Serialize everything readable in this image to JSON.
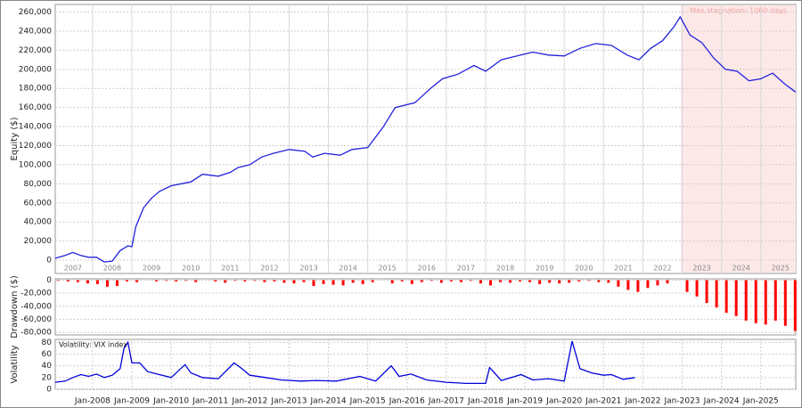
{
  "chart_data": [
    {
      "type": "line",
      "y_label": "Equity ($)",
      "annotation": "Max stagnation: 1060 days",
      "stagnation_span": [
        2022.97,
        2025.89
      ],
      "shade_color": "#fde8e8",
      "color": "#2222dd",
      "xlim": [
        2007.05,
        2025.89
      ],
      "ylim": [
        -14000,
        268000
      ],
      "xgrid": [
        2008,
        2009,
        2010,
        2011,
        2012,
        2013,
        2014,
        2015,
        2016,
        2017,
        2018,
        2019,
        2020,
        2021,
        2022,
        2023,
        2024,
        2025
      ],
      "xticks": [
        {
          "value": 2007.5,
          "label": "2007"
        },
        {
          "value": 2008.5,
          "label": "2008"
        },
        {
          "value": 2009.5,
          "label": "2009"
        },
        {
          "value": 2010.5,
          "label": "2010"
        },
        {
          "value": 2011.5,
          "label": "2011"
        },
        {
          "value": 2012.5,
          "label": "2012"
        },
        {
          "value": 2013.5,
          "label": "2013"
        },
        {
          "value": 2014.5,
          "label": "2014"
        },
        {
          "value": 2015.5,
          "label": "2015"
        },
        {
          "value": 2016.5,
          "label": "2016"
        },
        {
          "value": 2017.5,
          "label": "2017"
        },
        {
          "value": 2018.5,
          "label": "2018"
        },
        {
          "value": 2019.5,
          "label": "2019"
        },
        {
          "value": 2020.5,
          "label": "2020"
        },
        {
          "value": 2021.5,
          "label": "2021"
        },
        {
          "value": 2022.5,
          "label": "2022"
        },
        {
          "value": 2023.5,
          "label": "2023"
        },
        {
          "value": 2024.5,
          "label": "2024"
        },
        {
          "value": 2025.5,
          "label": "2025"
        }
      ],
      "yticks": [
        0,
        {
          "value": 20000,
          "label": "20,000"
        },
        {
          "value": 40000,
          "label": "40,000"
        },
        {
          "value": 60000,
          "label": "60,000"
        },
        {
          "value": 80000,
          "label": "80,000"
        },
        {
          "value": 100000,
          "label": "100,000"
        },
        {
          "value": 120000,
          "label": "120,000"
        },
        {
          "value": 140000,
          "label": "140,000"
        },
        {
          "value": 160000,
          "label": "160,000"
        },
        {
          "value": 180000,
          "label": "180,000"
        },
        {
          "value": 200000,
          "label": "200,000"
        },
        {
          "value": 220000,
          "label": "220,000"
        },
        {
          "value": 240000,
          "label": "240,000"
        },
        {
          "value": 260000,
          "label": "260,000"
        }
      ],
      "x": [
        2007.05,
        2007.3,
        2007.5,
        2007.7,
        2007.9,
        2008.1,
        2008.3,
        2008.5,
        2008.7,
        2008.9,
        2009.0,
        2009.1,
        2009.3,
        2009.5,
        2009.7,
        2010.0,
        2010.5,
        2010.8,
        2011.2,
        2011.5,
        2011.7,
        2012.0,
        2012.3,
        2012.6,
        2013.0,
        2013.4,
        2013.6,
        2013.9,
        2014.3,
        2014.6,
        2015.0,
        2015.4,
        2015.7,
        2016.2,
        2016.6,
        2016.9,
        2017.3,
        2017.7,
        2018.0,
        2018.4,
        2018.8,
        2019.2,
        2019.6,
        2020.0,
        2020.4,
        2020.8,
        2021.2,
        2021.6,
        2021.9,
        2022.2,
        2022.5,
        2022.8,
        2022.95,
        2023.2,
        2023.5,
        2023.8,
        2024.1,
        2024.4,
        2024.7,
        2025.0,
        2025.3,
        2025.6,
        2025.89
      ],
      "values": [
        2000,
        5000,
        8000,
        5000,
        3000,
        3000,
        -2000,
        -1000,
        10000,
        15000,
        14000,
        35000,
        55000,
        65000,
        72000,
        78000,
        82000,
        90000,
        88000,
        92000,
        97000,
        100000,
        108000,
        112000,
        116000,
        114000,
        108000,
        112000,
        110000,
        116000,
        118000,
        140000,
        160000,
        165000,
        180000,
        190000,
        195000,
        204000,
        198000,
        210000,
        214000,
        218000,
        215000,
        214000,
        222000,
        227000,
        225000,
        215000,
        210000,
        222000,
        230000,
        245000,
        255000,
        236000,
        228000,
        212000,
        200000,
        198000,
        188000,
        190000,
        196000,
        185000,
        176000
      ]
    },
    {
      "type": "bar",
      "y_label": "Drawdown ($)",
      "color": "#ff0000",
      "xlim": [
        2007.05,
        2025.89
      ],
      "ylim": [
        -84000,
        2000
      ],
      "yticks": [
        0,
        {
          "value": -20000,
          "label": "-20,000"
        },
        {
          "value": -40000,
          "label": "-40,000"
        },
        {
          "value": -60000,
          "label": "-60,000"
        },
        {
          "value": -80000,
          "label": "-80,000"
        }
      ],
      "x": [
        2007.125,
        2007.375,
        2007.625,
        2007.875,
        2008.125,
        2008.375,
        2008.625,
        2008.875,
        2009.125,
        2009.375,
        2009.625,
        2009.875,
        2010.125,
        2010.375,
        2010.625,
        2010.875,
        2011.125,
        2011.375,
        2011.625,
        2011.875,
        2012.125,
        2012.375,
        2012.625,
        2012.875,
        2013.125,
        2013.375,
        2013.625,
        2013.875,
        2014.125,
        2014.375,
        2014.625,
        2014.875,
        2015.125,
        2015.375,
        2015.625,
        2015.875,
        2016.125,
        2016.375,
        2016.625,
        2016.875,
        2017.125,
        2017.375,
        2017.625,
        2017.875,
        2018.125,
        2018.375,
        2018.625,
        2018.875,
        2019.125,
        2019.375,
        2019.625,
        2019.875,
        2020.125,
        2020.375,
        2020.625,
        2020.875,
        2021.125,
        2021.375,
        2021.625,
        2021.875,
        2022.125,
        2022.375,
        2022.625,
        2022.875,
        2023.125,
        2023.375,
        2023.625,
        2023.875,
        2024.125,
        2024.375,
        2024.625,
        2024.875,
        2025.125,
        2025.375,
        2025.625,
        2025.875
      ],
      "values": [
        -1000,
        -2000,
        -3000,
        -5000,
        -6000,
        -10000,
        -9000,
        -2000,
        -3000,
        0,
        -2000,
        -1000,
        -2000,
        -1000,
        -3000,
        0,
        -2000,
        -4000,
        -1000,
        -2000,
        -1000,
        -3000,
        -2000,
        -4000,
        -5000,
        -3000,
        -9000,
        -6000,
        -7000,
        -8000,
        -4000,
        -6000,
        -3000,
        0,
        -5000,
        -2000,
        -6000,
        -3000,
        -1000,
        -4000,
        -2000,
        -3000,
        -1000,
        -5000,
        -8000,
        -3000,
        -4000,
        -2000,
        -3000,
        -6000,
        -4000,
        -5000,
        -4000,
        -2000,
        -1000,
        -3000,
        -4000,
        -10000,
        -15000,
        -18000,
        -12000,
        -8000,
        -5000,
        0,
        -18000,
        -25000,
        -35000,
        -42000,
        -50000,
        -55000,
        -62000,
        -66000,
        -68000,
        -62000,
        -70000,
        -78000
      ]
    },
    {
      "type": "line",
      "y_label": "Volatility",
      "xlim": [
        2007.05,
        2025.89
      ],
      "ylim": [
        0,
        85
      ],
      "yticks": [
        0,
        20,
        40,
        60,
        80
      ],
      "xticks": [
        {
          "value": 2008,
          "label": "Jan-2008"
        },
        {
          "value": 2009,
          "label": "Jan-2009"
        },
        {
          "value": 2010,
          "label": "Jan-2010"
        },
        {
          "value": 2011,
          "label": "Jan-2011"
        },
        {
          "value": 2012,
          "label": "Jan-2012"
        },
        {
          "value": 2013,
          "label": "Jan-2013"
        },
        {
          "value": 2014,
          "label": "Jan-2014"
        },
        {
          "value": 2015,
          "label": "Jan-2015"
        },
        {
          "value": 2016,
          "label": "Jan-2016"
        },
        {
          "value": 2017,
          "label": "Jan-2017"
        },
        {
          "value": 2018,
          "label": "Jan-2018"
        },
        {
          "value": 2019,
          "label": "Jan-2019"
        },
        {
          "value": 2020,
          "label": "Jan-2020"
        },
        {
          "value": 2021,
          "label": "Jan-2021"
        },
        {
          "value": 2022,
          "label": "Jan-2022"
        },
        {
          "value": 2023,
          "label": "Jan-2023"
        },
        {
          "value": 2024,
          "label": "Jan-2024"
        },
        {
          "value": 2025,
          "label": "Jan-2025"
        }
      ],
      "series": [
        {
          "name": "Volatility: VIX index",
          "color": "#0000dd",
          "x": [
            2007.05,
            2007.3,
            2007.5,
            2007.7,
            2007.9,
            2008.1,
            2008.3,
            2008.5,
            2008.7,
            2008.8,
            2008.9,
            2009.0,
            2009.2,
            2009.4,
            2009.7,
            2010.0,
            2010.35,
            2010.5,
            2010.8,
            2011.2,
            2011.6,
            2011.8,
            2012.0,
            2012.4,
            2012.8,
            2013.3,
            2013.7,
            2014.2,
            2014.8,
            2015.2,
            2015.6,
            2015.8,
            2016.1,
            2016.5,
            2017.0,
            2017.5,
            2018.0,
            2018.1,
            2018.4,
            2018.9,
            2019.2,
            2019.6,
            2020.0,
            2020.2,
            2020.4,
            2020.7,
            2021.0,
            2021.2,
            2021.5,
            2021.8
          ],
          "values": [
            12,
            14,
            20,
            25,
            22,
            26,
            20,
            24,
            35,
            70,
            80,
            45,
            45,
            30,
            25,
            20,
            42,
            28,
            20,
            18,
            45,
            35,
            24,
            20,
            16,
            14,
            15,
            14,
            22,
            14,
            40,
            22,
            26,
            16,
            12,
            10,
            10,
            37,
            15,
            25,
            16,
            18,
            14,
            82,
            35,
            28,
            24,
            25,
            17,
            20
          ]
        }
      ]
    }
  ]
}
